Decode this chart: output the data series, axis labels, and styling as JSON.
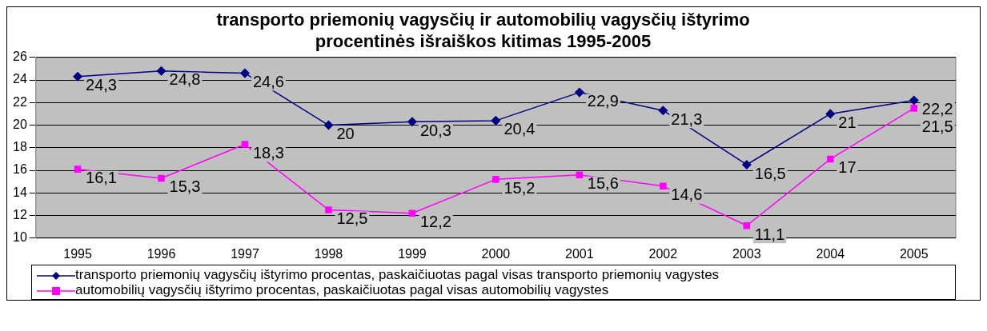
{
  "chart_data": {
    "type": "line",
    "title": [
      "transporto priemonių vagysčių ir automobilių vagysčių ištyrimo",
      "procentinės išraiškos kitimas 1995-2005"
    ],
    "categories": [
      "1995",
      "1996",
      "1997",
      "1998",
      "1999",
      "2000",
      "2001",
      "2002",
      "2003",
      "2004",
      "2005"
    ],
    "series": [
      {
        "name": "transporto priemonių vagysčių ištyrimo procentas, paskaičiuotas pagal visas transporto priemonių vagystes",
        "color": "#000080",
        "marker": "diamond",
        "values": [
          24.3,
          24.8,
          24.6,
          20,
          20.3,
          20.4,
          22.9,
          21.3,
          16.5,
          21,
          22.2
        ],
        "value_labels": [
          "24,3",
          "24,8",
          "24,6",
          "20",
          "20,3",
          "20,4",
          "22,9",
          "21,3",
          "16,5",
          "21",
          "22,2"
        ]
      },
      {
        "name": "automobilių vagysčių ištyrimo procentas, paskaičiuotas pagal visas automobilių vagystes",
        "color": "#ff00ff",
        "marker": "square",
        "values": [
          16.1,
          15.3,
          18.3,
          12.5,
          12.2,
          15.2,
          15.6,
          14.6,
          11.1,
          17,
          21.5
        ],
        "value_labels": [
          "16,1",
          "15,3",
          "18,3",
          "12,5",
          "12,2",
          "15,2",
          "15,6",
          "14,6",
          "11,1",
          "17",
          "21,5"
        ]
      }
    ],
    "ylim": [
      10,
      26
    ],
    "yticks": [
      10,
      12,
      14,
      16,
      18,
      20,
      22,
      24,
      26
    ],
    "grid": "y",
    "legend": "bottom",
    "line_style": "solid"
  }
}
